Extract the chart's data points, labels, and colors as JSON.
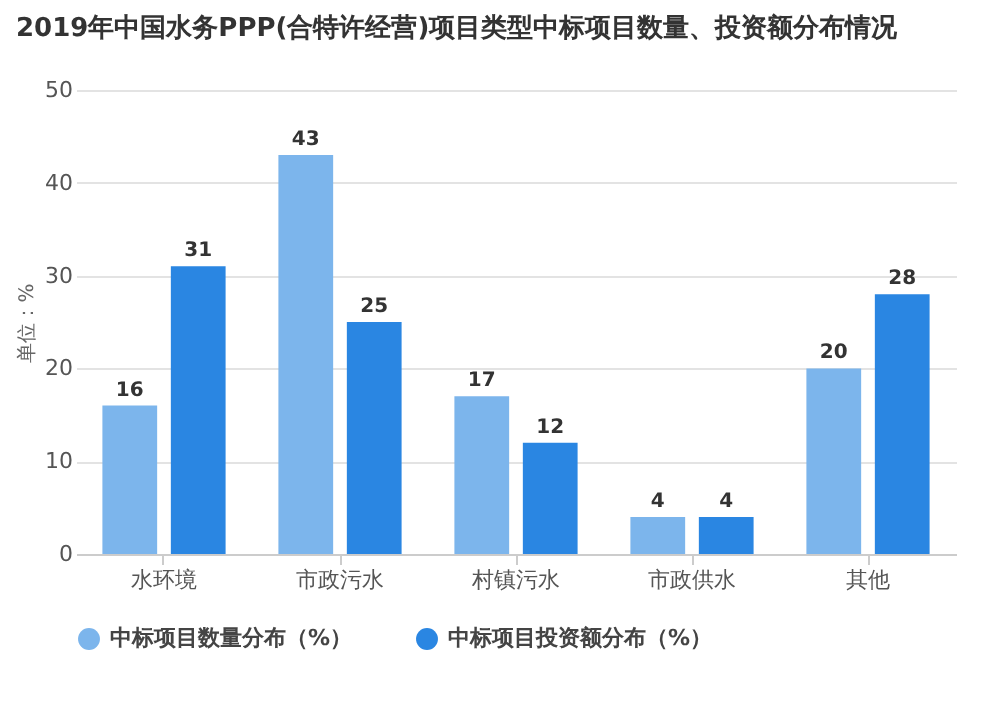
{
  "chart_data": {
    "type": "bar",
    "title": "2019年中国水务PPP(合特许经营)项目类型中标项目数量、投资额分布情况",
    "ylabel": "单位：%",
    "categories": [
      "水环境",
      "市政污水",
      "村镇污水",
      "市政供水",
      "其他"
    ],
    "series": [
      {
        "name": "中标项目数量分布（%）",
        "color": "#7cb5ec",
        "values": [
          16,
          43,
          17,
          4,
          20
        ]
      },
      {
        "name": "中标项目投资额分布（%）",
        "color": "#2a86e2",
        "values": [
          31,
          25,
          12,
          4,
          28
        ]
      }
    ],
    "ylim": [
      0,
      50
    ],
    "yticks": [
      0,
      10,
      20,
      30,
      40,
      50
    ],
    "grid": "y",
    "legend": "bottom",
    "data_labels": true
  }
}
